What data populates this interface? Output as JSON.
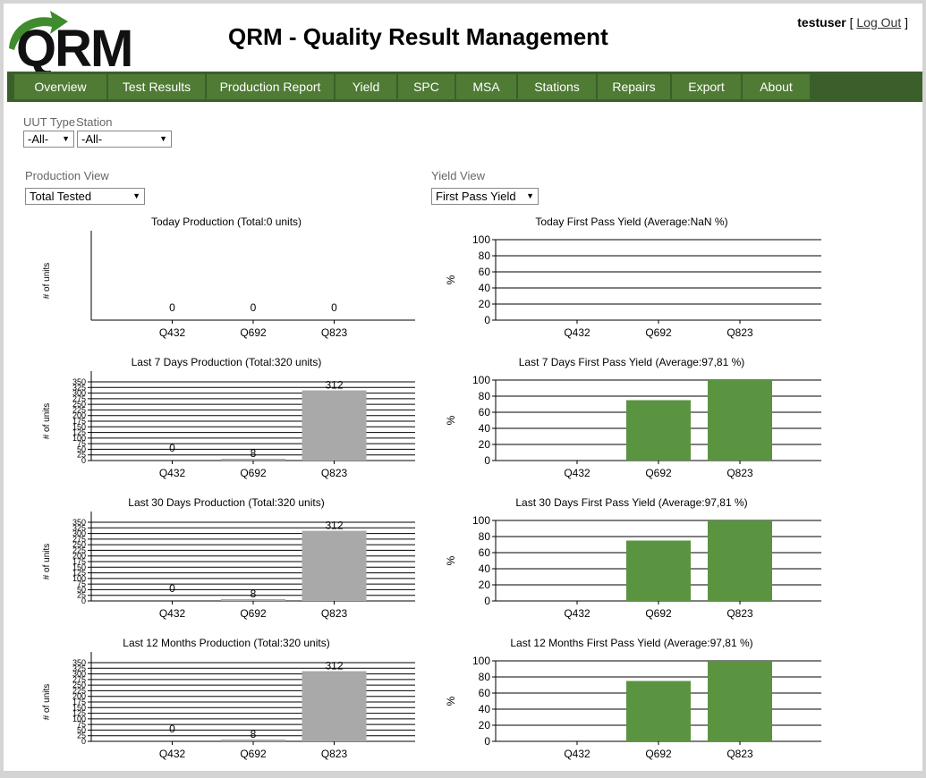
{
  "header": {
    "logo_text": "QRM",
    "title": "QRM - Quality Result Management",
    "username": "testuser",
    "bracket_open": "[",
    "logout_label": "Log Out",
    "bracket_close": "]"
  },
  "nav": {
    "items": [
      "Overview",
      "Test Results",
      "Production Report",
      "Yield",
      "SPC",
      "MSA",
      "Stations",
      "Repairs",
      "Export",
      "About"
    ]
  },
  "filters": {
    "uut_type_label": "UUT Type",
    "station_label": "Station",
    "uut_type_value": "-All-",
    "station_value": "-All-"
  },
  "views": {
    "production_label": "Production View",
    "production_value": "Total Tested",
    "yield_label": "Yield View",
    "yield_value": "First Pass Yield"
  },
  "colors": {
    "production_bar": "#a9a9a9",
    "yield_bar": "#5b9440",
    "nav_bg": "#3a5f2b",
    "nav_item": "#4f7b35"
  },
  "chart_data": [
    {
      "id": "prod-today",
      "type": "bar",
      "title": "Today Production (Total:0 units)",
      "ylabel": "# of units",
      "categories": [
        "Q432",
        "Q692",
        "Q823"
      ],
      "values": [
        0,
        0,
        0
      ],
      "data_labels": [
        "0",
        "0",
        "0"
      ],
      "yticks": [],
      "ylim": [
        0,
        350
      ],
      "grid": false
    },
    {
      "id": "yield-today",
      "type": "bar",
      "title": "Today First Pass Yield (Average:NaN %)",
      "ylabel": "%",
      "categories": [
        "Q432",
        "Q692",
        "Q823"
      ],
      "values": [
        null,
        null,
        null
      ],
      "yticks": [
        0,
        20,
        40,
        60,
        80,
        100
      ],
      "ylim": [
        0,
        100
      ],
      "grid": true
    },
    {
      "id": "prod-7d",
      "type": "bar",
      "title": "Last 7 Days Production (Total:320 units)",
      "ylabel": "# of units",
      "categories": [
        "Q432",
        "Q692",
        "Q823"
      ],
      "values": [
        0,
        8,
        312
      ],
      "data_labels": [
        "0",
        "8",
        "312"
      ],
      "yticks": [
        0,
        25,
        50,
        75,
        100,
        125,
        150,
        175,
        200,
        225,
        250,
        275,
        300,
        325,
        350
      ],
      "ylim": [
        0,
        350
      ],
      "grid": true
    },
    {
      "id": "yield-7d",
      "type": "bar",
      "title": "Last 7 Days First Pass Yield (Average:97,81 %)",
      "ylabel": "%",
      "categories": [
        "Q432",
        "Q692",
        "Q823"
      ],
      "values": [
        null,
        75,
        100
      ],
      "yticks": [
        0,
        20,
        40,
        60,
        80,
        100
      ],
      "ylim": [
        0,
        100
      ],
      "grid": true
    },
    {
      "id": "prod-30d",
      "type": "bar",
      "title": "Last 30 Days Production (Total:320 units)",
      "ylabel": "# of units",
      "categories": [
        "Q432",
        "Q692",
        "Q823"
      ],
      "values": [
        0,
        8,
        312
      ],
      "data_labels": [
        "0",
        "8",
        "312"
      ],
      "yticks": [
        0,
        25,
        50,
        75,
        100,
        125,
        150,
        175,
        200,
        225,
        250,
        275,
        300,
        325,
        350
      ],
      "ylim": [
        0,
        350
      ],
      "grid": true
    },
    {
      "id": "yield-30d",
      "type": "bar",
      "title": "Last 30 Days First Pass Yield (Average:97,81 %)",
      "ylabel": "%",
      "categories": [
        "Q432",
        "Q692",
        "Q823"
      ],
      "values": [
        null,
        75,
        100
      ],
      "yticks": [
        0,
        20,
        40,
        60,
        80,
        100
      ],
      "ylim": [
        0,
        100
      ],
      "grid": true
    },
    {
      "id": "prod-12m",
      "type": "bar",
      "title": "Last 12 Months Production (Total:320 units)",
      "ylabel": "# of units",
      "categories": [
        "Q432",
        "Q692",
        "Q823"
      ],
      "values": [
        0,
        8,
        312
      ],
      "data_labels": [
        "0",
        "8",
        "312"
      ],
      "yticks": [
        0,
        25,
        50,
        75,
        100,
        125,
        150,
        175,
        200,
        225,
        250,
        275,
        300,
        325,
        350
      ],
      "ylim": [
        0,
        350
      ],
      "grid": true
    },
    {
      "id": "yield-12m",
      "type": "bar",
      "title": "Last 12 Months First Pass Yield (Average:97,81 %)",
      "ylabel": "%",
      "categories": [
        "Q432",
        "Q692",
        "Q823"
      ],
      "values": [
        null,
        75,
        100
      ],
      "yticks": [
        0,
        20,
        40,
        60,
        80,
        100
      ],
      "ylim": [
        0,
        100
      ],
      "grid": true
    }
  ]
}
